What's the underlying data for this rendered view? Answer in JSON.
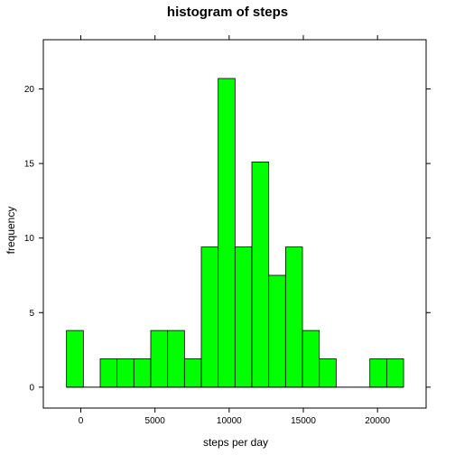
{
  "chart_data": {
    "type": "bar",
    "title": "histogram of steps",
    "xlabel": "steps per day",
    "ylabel": "frequency",
    "bin_width": 1136,
    "bins": [
      {
        "x0": -964,
        "x1": 172,
        "value": 3.8
      },
      {
        "x0": 172,
        "x1": 1308,
        "value": 0
      },
      {
        "x0": 1308,
        "x1": 2444,
        "value": 1.9
      },
      {
        "x0": 2444,
        "x1": 3580,
        "value": 1.9
      },
      {
        "x0": 3580,
        "x1": 4716,
        "value": 1.9
      },
      {
        "x0": 4716,
        "x1": 5852,
        "value": 3.8
      },
      {
        "x0": 5852,
        "x1": 6988,
        "value": 3.8
      },
      {
        "x0": 6988,
        "x1": 8124,
        "value": 1.9
      },
      {
        "x0": 8124,
        "x1": 9260,
        "value": 9.4
      },
      {
        "x0": 9260,
        "x1": 10396,
        "value": 20.7
      },
      {
        "x0": 10396,
        "x1": 11532,
        "value": 9.4
      },
      {
        "x0": 11532,
        "x1": 12668,
        "value": 15.1
      },
      {
        "x0": 12668,
        "x1": 13804,
        "value": 7.5
      },
      {
        "x0": 13804,
        "x1": 14940,
        "value": 9.4
      },
      {
        "x0": 14940,
        "x1": 16076,
        "value": 3.8
      },
      {
        "x0": 16076,
        "x1": 17212,
        "value": 1.9
      },
      {
        "x0": 17212,
        "x1": 18348,
        "value": 0
      },
      {
        "x0": 18348,
        "x1": 19484,
        "value": 0
      },
      {
        "x0": 19484,
        "x1": 20620,
        "value": 1.9
      },
      {
        "x0": 20620,
        "x1": 21756,
        "value": 1.9
      }
    ],
    "xlim": [
      -2525,
      23275
    ],
    "ylim": [
      -1.4,
      23.3
    ],
    "x_ticks": [
      {
        "value": 0,
        "label": "0"
      },
      {
        "value": 5000,
        "label": "5000"
      },
      {
        "value": 10000,
        "label": "10000"
      },
      {
        "value": 15000,
        "label": "15000"
      },
      {
        "value": 20000,
        "label": "20000"
      }
    ],
    "y_ticks": [
      {
        "value": 0,
        "label": "0"
      },
      {
        "value": 5,
        "label": "5"
      },
      {
        "value": 10,
        "label": "10"
      },
      {
        "value": 15,
        "label": "15"
      },
      {
        "value": 20,
        "label": "20"
      }
    ],
    "grid": false,
    "colors": {
      "bar_fill": "#00ff00",
      "bar_stroke": "#000000",
      "axis": "#000000",
      "baseline": "#000000",
      "background": "#ffffff"
    }
  }
}
